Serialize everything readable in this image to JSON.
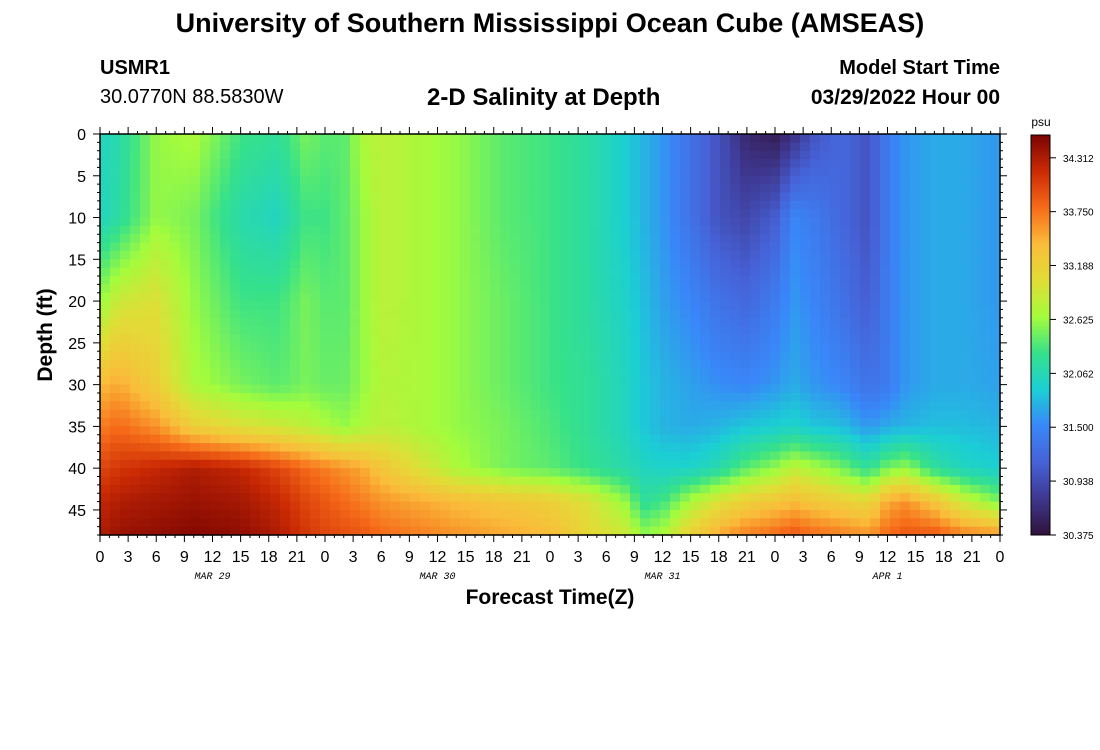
{
  "header": {
    "title": "University of Southern Mississippi Ocean Cube (AMSEAS)",
    "station_id": "USMR1",
    "coords": "30.0770N  88.5830W",
    "subtitle": "2-D Salinity at Depth",
    "start_label": "Model Start Time",
    "start_value": "03/29/2022 Hour 00"
  },
  "footer": {
    "title": "University of Southern Mississippi Ocean Cube (AMSEAS)"
  },
  "colors": {
    "ramp": [
      "#30123b",
      "#3e378f",
      "#4662d7",
      "#3987f9",
      "#1bcfd4",
      "#36e18a",
      "#a4fc3c",
      "#e1dd37",
      "#fabc3a",
      "#f66b19",
      "#cb2a04",
      "#7a0403"
    ]
  },
  "chart_data": {
    "type": "heatmap",
    "title": "2-D Salinity at Depth",
    "xlabel": "Forecast Time(Z)",
    "ylabel": "Depth (ft)",
    "colorbar_unit": "psu",
    "xlim": [
      0,
      96
    ],
    "ylim": [
      0,
      48
    ],
    "x_tick_labels": [
      "0",
      "3",
      "6",
      "9",
      "12",
      "15",
      "18",
      "21",
      "0",
      "3",
      "6",
      "9",
      "12",
      "15",
      "18",
      "21",
      "0",
      "3",
      "6",
      "9",
      "12",
      "15",
      "18",
      "21",
      "0",
      "3",
      "6",
      "9",
      "12",
      "15",
      "18",
      "21",
      "0"
    ],
    "date_labels": [
      {
        "hour": 12,
        "text": "MAR 29"
      },
      {
        "hour": 36,
        "text": "MAR 30"
      },
      {
        "hour": 60,
        "text": "MAR 31"
      },
      {
        "hour": 84,
        "text": "APR 1"
      }
    ],
    "y_ticks": [
      0,
      5,
      10,
      15,
      20,
      25,
      30,
      35,
      40,
      45
    ],
    "colorbar_ticks": [
      "34.312",
      "33.750",
      "33.188",
      "32.625",
      "32.062",
      "31.500",
      "30.938",
      "30.375"
    ],
    "vmin": 30.375,
    "vmax": 34.55,
    "x_grid": [
      0,
      2,
      6,
      10,
      15,
      19,
      22,
      24,
      26,
      28,
      30,
      34,
      38,
      43,
      48,
      52,
      56,
      58,
      60,
      63,
      66,
      69,
      72,
      74,
      76,
      79,
      82,
      84,
      86,
      89,
      92,
      96
    ],
    "depth_grid": [
      0,
      10,
      20,
      30,
      35,
      40,
      44,
      48
    ],
    "values": [
      [
        32.0,
        32.1,
        32.6,
        32.7,
        32.3,
        32.2,
        32.5,
        32.4,
        32.4,
        32.7,
        32.8,
        32.7,
        32.6,
        32.4,
        32.3,
        32.15,
        31.9,
        31.75,
        31.6,
        31.3,
        31.0,
        30.6,
        30.5,
        30.7,
        31.0,
        31.2,
        31.0,
        31.4,
        31.6,
        31.7,
        31.7,
        31.6
      ],
      [
        32.0,
        32.15,
        32.6,
        32.5,
        32.1,
        32.0,
        32.3,
        32.3,
        32.4,
        32.6,
        32.8,
        32.7,
        32.6,
        32.4,
        32.3,
        32.15,
        31.9,
        31.75,
        31.6,
        31.3,
        31.0,
        30.9,
        31.1,
        31.5,
        31.4,
        31.2,
        31.0,
        31.4,
        31.6,
        31.7,
        31.7,
        31.6
      ],
      [
        32.6,
        32.9,
        33.0,
        32.6,
        32.3,
        32.3,
        32.5,
        32.4,
        32.4,
        32.6,
        32.8,
        32.7,
        32.6,
        32.45,
        32.3,
        32.15,
        31.95,
        31.8,
        31.65,
        31.5,
        31.3,
        31.2,
        31.4,
        31.6,
        31.5,
        31.3,
        31.1,
        31.4,
        31.6,
        31.7,
        31.7,
        31.6
      ],
      [
        33.4,
        33.5,
        33.2,
        32.7,
        32.5,
        32.4,
        32.5,
        32.45,
        32.45,
        32.6,
        32.75,
        32.7,
        32.6,
        32.45,
        32.3,
        32.2,
        32.0,
        31.85,
        31.75,
        31.65,
        31.55,
        31.5,
        31.6,
        31.7,
        31.6,
        31.5,
        31.3,
        31.4,
        31.6,
        31.7,
        31.7,
        31.65
      ],
      [
        33.7,
        33.8,
        33.6,
        33.2,
        33.0,
        32.9,
        32.8,
        32.7,
        32.6,
        32.7,
        32.8,
        32.7,
        32.6,
        32.5,
        32.35,
        32.2,
        32.0,
        31.85,
        31.75,
        31.7,
        31.75,
        31.85,
        31.9,
        31.95,
        31.85,
        31.8,
        31.6,
        31.7,
        31.75,
        31.8,
        31.8,
        31.75
      ],
      [
        34.0,
        34.1,
        34.2,
        34.3,
        34.2,
        34.0,
        33.8,
        33.7,
        33.6,
        33.5,
        33.3,
        33.0,
        32.7,
        32.5,
        32.4,
        32.25,
        32.1,
        32.0,
        31.95,
        31.95,
        32.1,
        32.4,
        32.6,
        32.8,
        32.7,
        32.5,
        32.2,
        32.5,
        32.6,
        32.2,
        32.0,
        31.9
      ],
      [
        34.2,
        34.3,
        34.35,
        34.4,
        34.35,
        34.2,
        34.0,
        33.9,
        33.8,
        33.7,
        33.6,
        33.5,
        33.4,
        33.3,
        33.2,
        33.0,
        32.6,
        32.2,
        32.3,
        32.7,
        33.0,
        33.2,
        33.3,
        33.4,
        33.3,
        33.2,
        33.1,
        33.5,
        33.6,
        33.3,
        32.9,
        32.5
      ],
      [
        34.3,
        34.4,
        34.45,
        34.5,
        34.45,
        34.3,
        34.1,
        34.0,
        33.95,
        33.9,
        33.8,
        33.7,
        33.6,
        33.5,
        33.4,
        33.1,
        32.9,
        32.6,
        32.7,
        33.2,
        33.5,
        33.7,
        33.8,
        33.9,
        33.8,
        33.7,
        33.6,
        33.8,
        33.9,
        33.9,
        33.7,
        33.6
      ]
    ]
  }
}
